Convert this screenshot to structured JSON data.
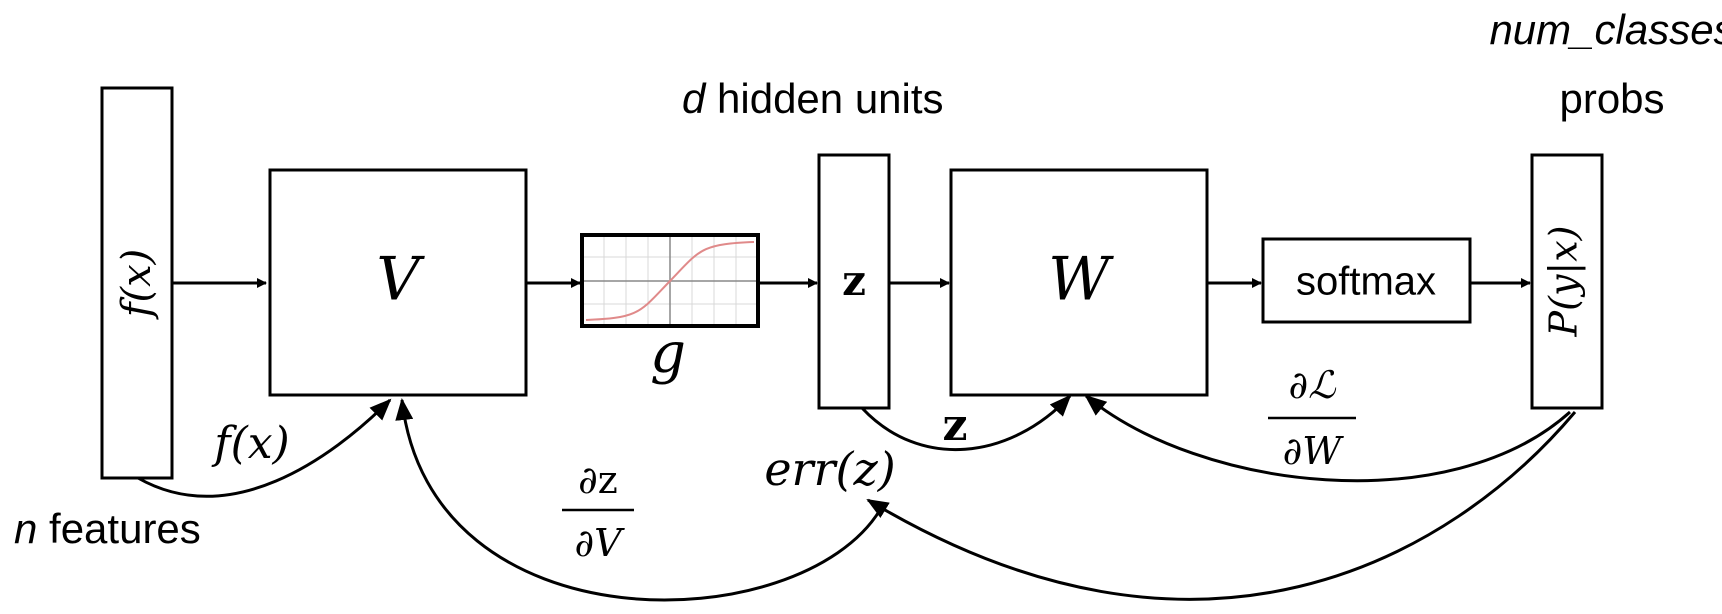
{
  "labels": {
    "input_vector": "f(x)",
    "input_caption_var": "n",
    "input_caption_rest": " features",
    "matrix_v": "V",
    "activation": "g",
    "hidden_vector": "z",
    "hidden_caption_var": "d",
    "hidden_caption_rest": " hidden units",
    "matrix_w": "W",
    "softmax": "softmax",
    "output_vector": "P(y|x)",
    "output_caption_line1": "num_classes",
    "output_caption_line2": "probs"
  },
  "backprop": {
    "fx_edge": "f(x)",
    "z_edge": "z",
    "dz_dv_num": "∂z",
    "dz_dv_den": "∂V",
    "err_z": "err(z)",
    "dl_dw_num": "∂ℒ",
    "dl_dw_den": "∂W"
  },
  "colors": {
    "stroke": "#000000",
    "sigmoid_curve": "#e08a8a",
    "grid": "#d8d8d8"
  }
}
